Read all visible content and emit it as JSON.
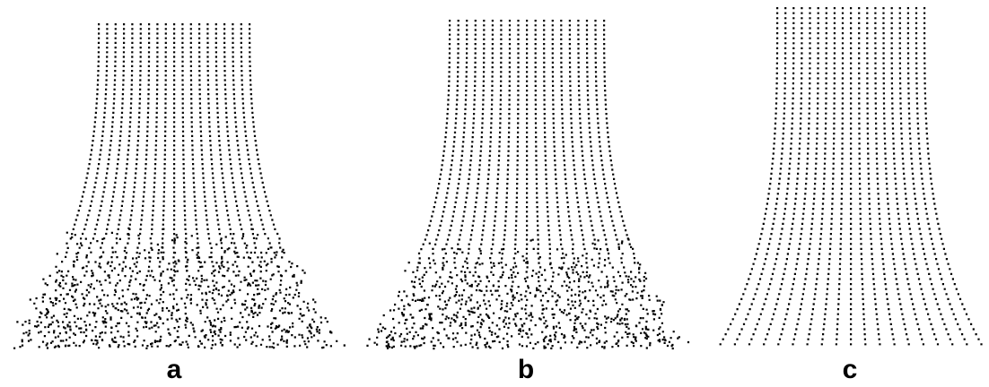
{
  "figure": {
    "panels": [
      {
        "label": "a"
      },
      {
        "label": "b"
      },
      {
        "label": "c"
      }
    ],
    "colors": {
      "dots": "#000000",
      "background": "#ffffff"
    }
  }
}
